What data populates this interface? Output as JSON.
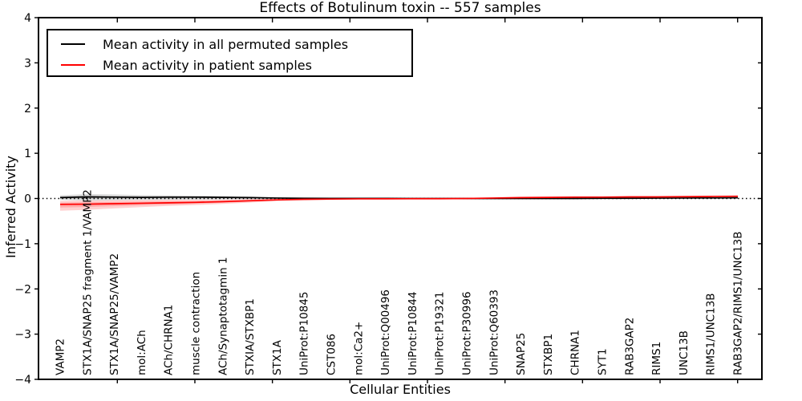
{
  "chart_data": {
    "type": "line",
    "title": "Effects of Botulinum toxin -- 557 samples",
    "xlabel": "Cellular Entities",
    "ylabel": "Inferred Activity",
    "ylim": [
      -4,
      4
    ],
    "yticks": [
      4,
      3,
      2,
      1,
      0,
      -1,
      -2,
      -3,
      -4
    ],
    "ytick_labels": [
      "4",
      "3",
      "2",
      "1",
      "0",
      "−1",
      "−2",
      "−3",
      "−4"
    ],
    "grid": false,
    "legend_position": "upper left",
    "zero_line": {
      "value": 0,
      "style": "dotted",
      "color": "#000000"
    },
    "categories": [
      "VAMP2",
      "STX1A/SNAP25 fragment 1/VAMP2",
      "STX1A/SNAP25/VAMP2",
      "mol:ACh",
      "ACh/CHRNA1",
      "muscle contraction",
      "ACh/Synaptotagmin 1",
      "STXIA/STXBP1",
      "STX1A",
      "UniProt:P10845",
      "CST086",
      "mol:Ca2+",
      "UniProt:Q00496",
      "UniProt:P10844",
      "UniProt:P19321",
      "UniProt:P30996",
      "UniProt:Q60393",
      "SNAP25",
      "STXBP1",
      "CHRNA1",
      "SYT1",
      "RAB3GAP2",
      "RIMS1",
      "UNC13B",
      "RIMS1/UNC13B",
      "RAB3GAP2/RIMS1/UNC13B"
    ],
    "series": [
      {
        "name": "Mean activity in all permuted samples",
        "color": "#000000",
        "band_color": "#000000",
        "band_opacity": 0.13,
        "values": [
          0.02,
          0.035,
          0.03,
          0.025,
          0.03,
          0.03,
          0.025,
          0.02,
          0.01,
          0.005,
          0.003,
          0.002,
          0.002,
          0.001,
          0.001,
          0.0,
          0.0,
          0.0,
          0.0,
          0.0,
          0.003,
          0.005,
          0.008,
          0.01,
          0.012,
          0.015
        ],
        "band_high": [
          0.07,
          0.1,
          0.09,
          0.075,
          0.07,
          0.065,
          0.06,
          0.045,
          0.025,
          0.015,
          0.01,
          0.008,
          0.008,
          0.006,
          0.005,
          0.005,
          0.005,
          0.006,
          0.008,
          0.01,
          0.014,
          0.018,
          0.023,
          0.028,
          0.033,
          0.042
        ],
        "band_low": [
          -0.03,
          -0.05,
          -0.045,
          -0.035,
          -0.03,
          -0.025,
          -0.02,
          -0.015,
          -0.01,
          -0.008,
          -0.006,
          -0.005,
          -0.005,
          -0.004,
          -0.004,
          -0.004,
          -0.004,
          -0.004,
          -0.004,
          -0.003,
          -0.002,
          0.0,
          0.0,
          0.001,
          0.002,
          0.003
        ]
      },
      {
        "name": "Mean activity in patient samples",
        "color": "#ff0000",
        "band_color": "#ff0000",
        "band_opacity": 0.18,
        "values": [
          -0.13,
          -0.125,
          -0.115,
          -0.105,
          -0.095,
          -0.085,
          -0.07,
          -0.05,
          -0.03,
          -0.018,
          -0.012,
          -0.008,
          -0.006,
          -0.005,
          -0.004,
          0.0,
          0.01,
          0.02,
          0.025,
          0.03,
          0.03,
          0.035,
          0.035,
          0.04,
          0.045,
          0.05
        ],
        "band_high": [
          -0.05,
          -0.045,
          -0.04,
          -0.035,
          -0.032,
          -0.03,
          -0.025,
          -0.015,
          -0.005,
          0.0,
          0.0,
          0.0,
          0.0,
          0.0,
          0.002,
          0.006,
          0.015,
          0.025,
          0.03,
          0.035,
          0.036,
          0.04,
          0.041,
          0.046,
          0.052,
          0.062
        ],
        "band_low": [
          -0.27,
          -0.25,
          -0.22,
          -0.19,
          -0.165,
          -0.145,
          -0.12,
          -0.09,
          -0.06,
          -0.04,
          -0.026,
          -0.018,
          -0.014,
          -0.011,
          -0.01,
          -0.007,
          0.004,
          0.014,
          0.019,
          0.024,
          0.024,
          0.029,
          0.029,
          0.033,
          0.037,
          0.04
        ]
      }
    ]
  }
}
